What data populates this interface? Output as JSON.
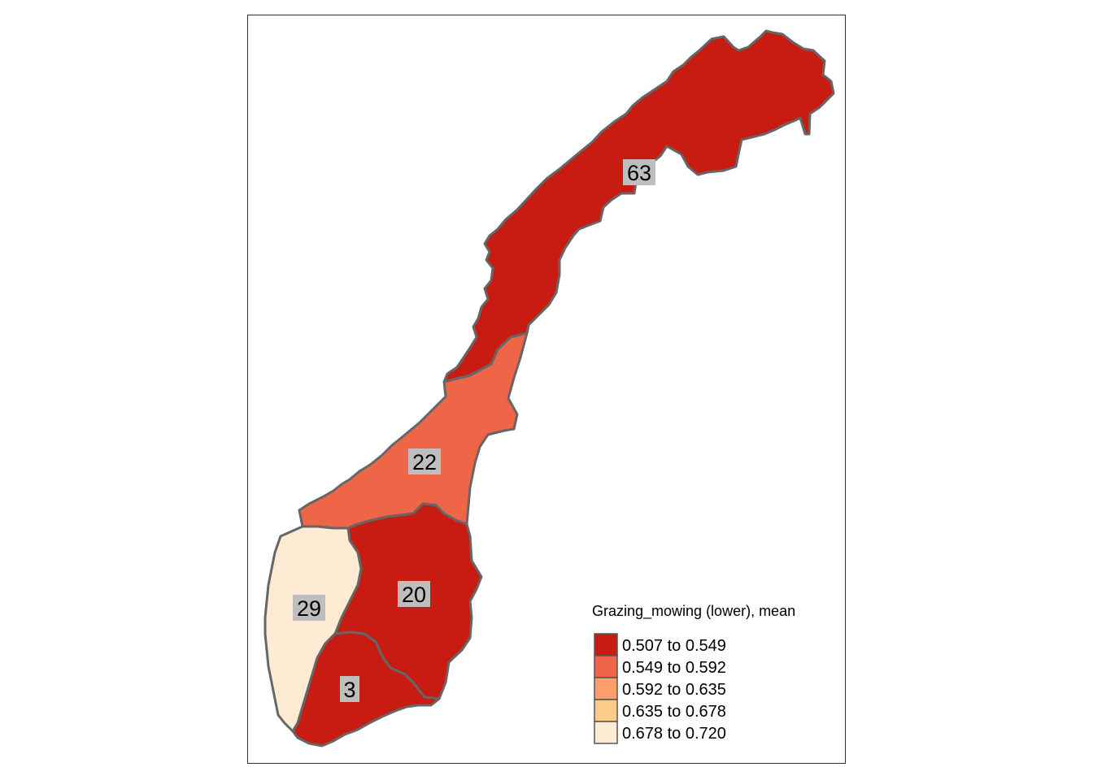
{
  "map": {
    "legend": {
      "title": "Grazing_mowing (lower), mean",
      "items": [
        {
          "label": "0.507 to 0.549",
          "color": "#C81B12"
        },
        {
          "label": "0.549 to 0.592",
          "color": "#EF6548"
        },
        {
          "label": "0.592 to 0.635",
          "color": "#FC9E6B"
        },
        {
          "label": "0.635 to 0.678",
          "color": "#FDCC8A"
        },
        {
          "label": "0.678 to 0.720",
          "color": "#FEEBD3"
        }
      ]
    },
    "regions": [
      {
        "id": "north",
        "label": "63",
        "color": "#C81B12"
      },
      {
        "id": "central",
        "label": "22",
        "color": "#EF6548"
      },
      {
        "id": "east",
        "label": "20",
        "color": "#C81B12"
      },
      {
        "id": "west",
        "label": "29",
        "color": "#FEEBD3"
      },
      {
        "id": "south",
        "label": "3",
        "color": "#C81B12"
      }
    ]
  }
}
